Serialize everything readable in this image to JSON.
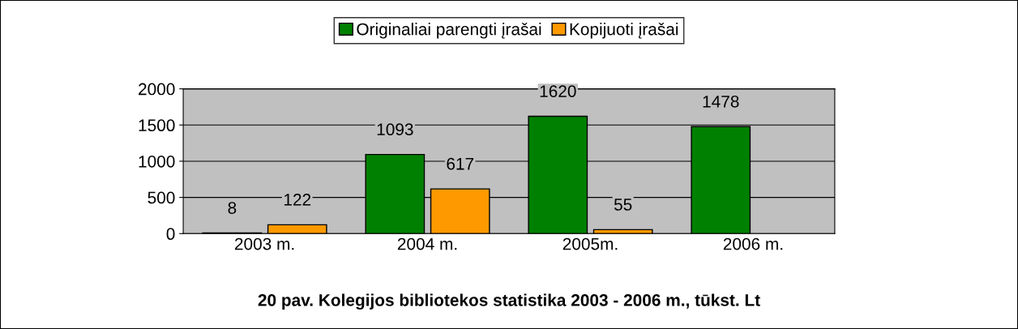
{
  "chart_data": {
    "type": "bar",
    "title": "20 pav. Kolegijos bibliotekos statistika 2003 - 2006 m., tūkst. Lt",
    "categories": [
      "2003 m.",
      "2004 m.",
      "2005m.",
      "2006 m."
    ],
    "series": [
      {
        "name": "Originaliai parengti įrašai",
        "color": "#008000",
        "values": [
          8,
          1093,
          1620,
          1478
        ]
      },
      {
        "name": "Kopijuoti įrašai",
        "color": "#ff9900",
        "values": [
          122,
          617,
          55,
          null
        ]
      }
    ],
    "ylim": [
      0,
      2000
    ],
    "yticks": [
      0,
      500,
      1000,
      1500,
      2000
    ],
    "grid": "y",
    "legend": "top",
    "data_labels": true
  }
}
